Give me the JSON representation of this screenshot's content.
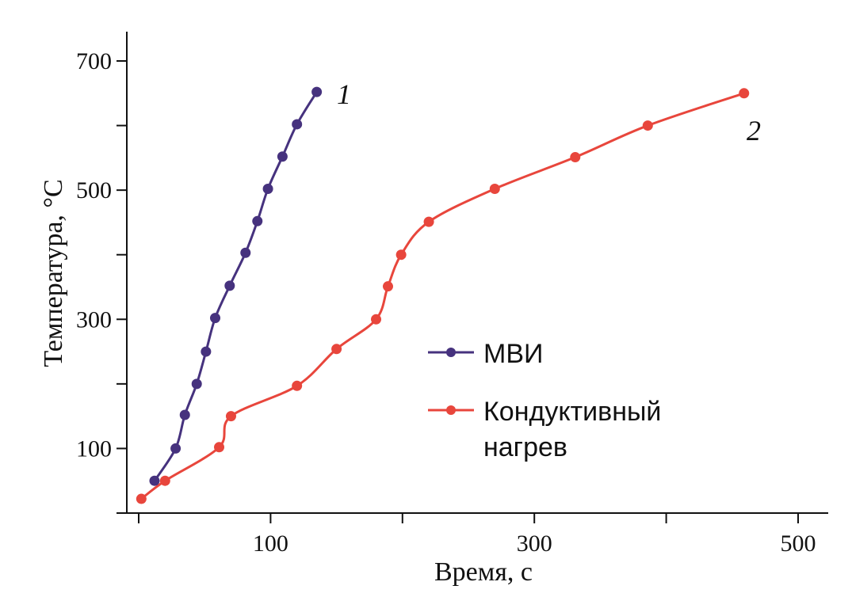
{
  "chart_data": {
    "type": "line",
    "title": "",
    "xlabel": "Время, с",
    "ylabel": "Температура, °C",
    "xlim": [
      0,
      520
    ],
    "ylim": [
      0,
      745
    ],
    "x_major_ticks": [
      0,
      100,
      200,
      300,
      400,
      500
    ],
    "x_tick_labels": [
      "",
      "100",
      "",
      "300",
      "",
      "500"
    ],
    "y_major_ticks": [
      0,
      100,
      200,
      300,
      400,
      500,
      600,
      700
    ],
    "y_tick_labels": [
      "",
      "100",
      "",
      "300",
      "",
      "500",
      "",
      "700"
    ],
    "legend_position": "center",
    "grid": false,
    "series": [
      {
        "name": "МВИ",
        "tag": "1",
        "color": "#46327e",
        "x": [
          12,
          28,
          35,
          44,
          51,
          58,
          69,
          81,
          90,
          98,
          109,
          120,
          135
        ],
        "y": [
          50,
          100,
          152,
          200,
          250,
          302,
          352,
          403,
          452,
          502,
          552,
          602,
          652
        ]
      },
      {
        "name": "Кондуктивный нагрев",
        "name_lines": [
          "Кондуктивный",
          "нагрев"
        ],
        "tag": "2",
        "color": "#e8463c",
        "x": [
          2,
          20,
          61,
          70,
          120,
          150,
          180,
          189,
          199,
          220,
          270,
          331,
          386,
          459
        ],
        "y": [
          22,
          50,
          102,
          150,
          197,
          254,
          300,
          351,
          400,
          451,
          502,
          551,
          600,
          650
        ]
      }
    ]
  }
}
